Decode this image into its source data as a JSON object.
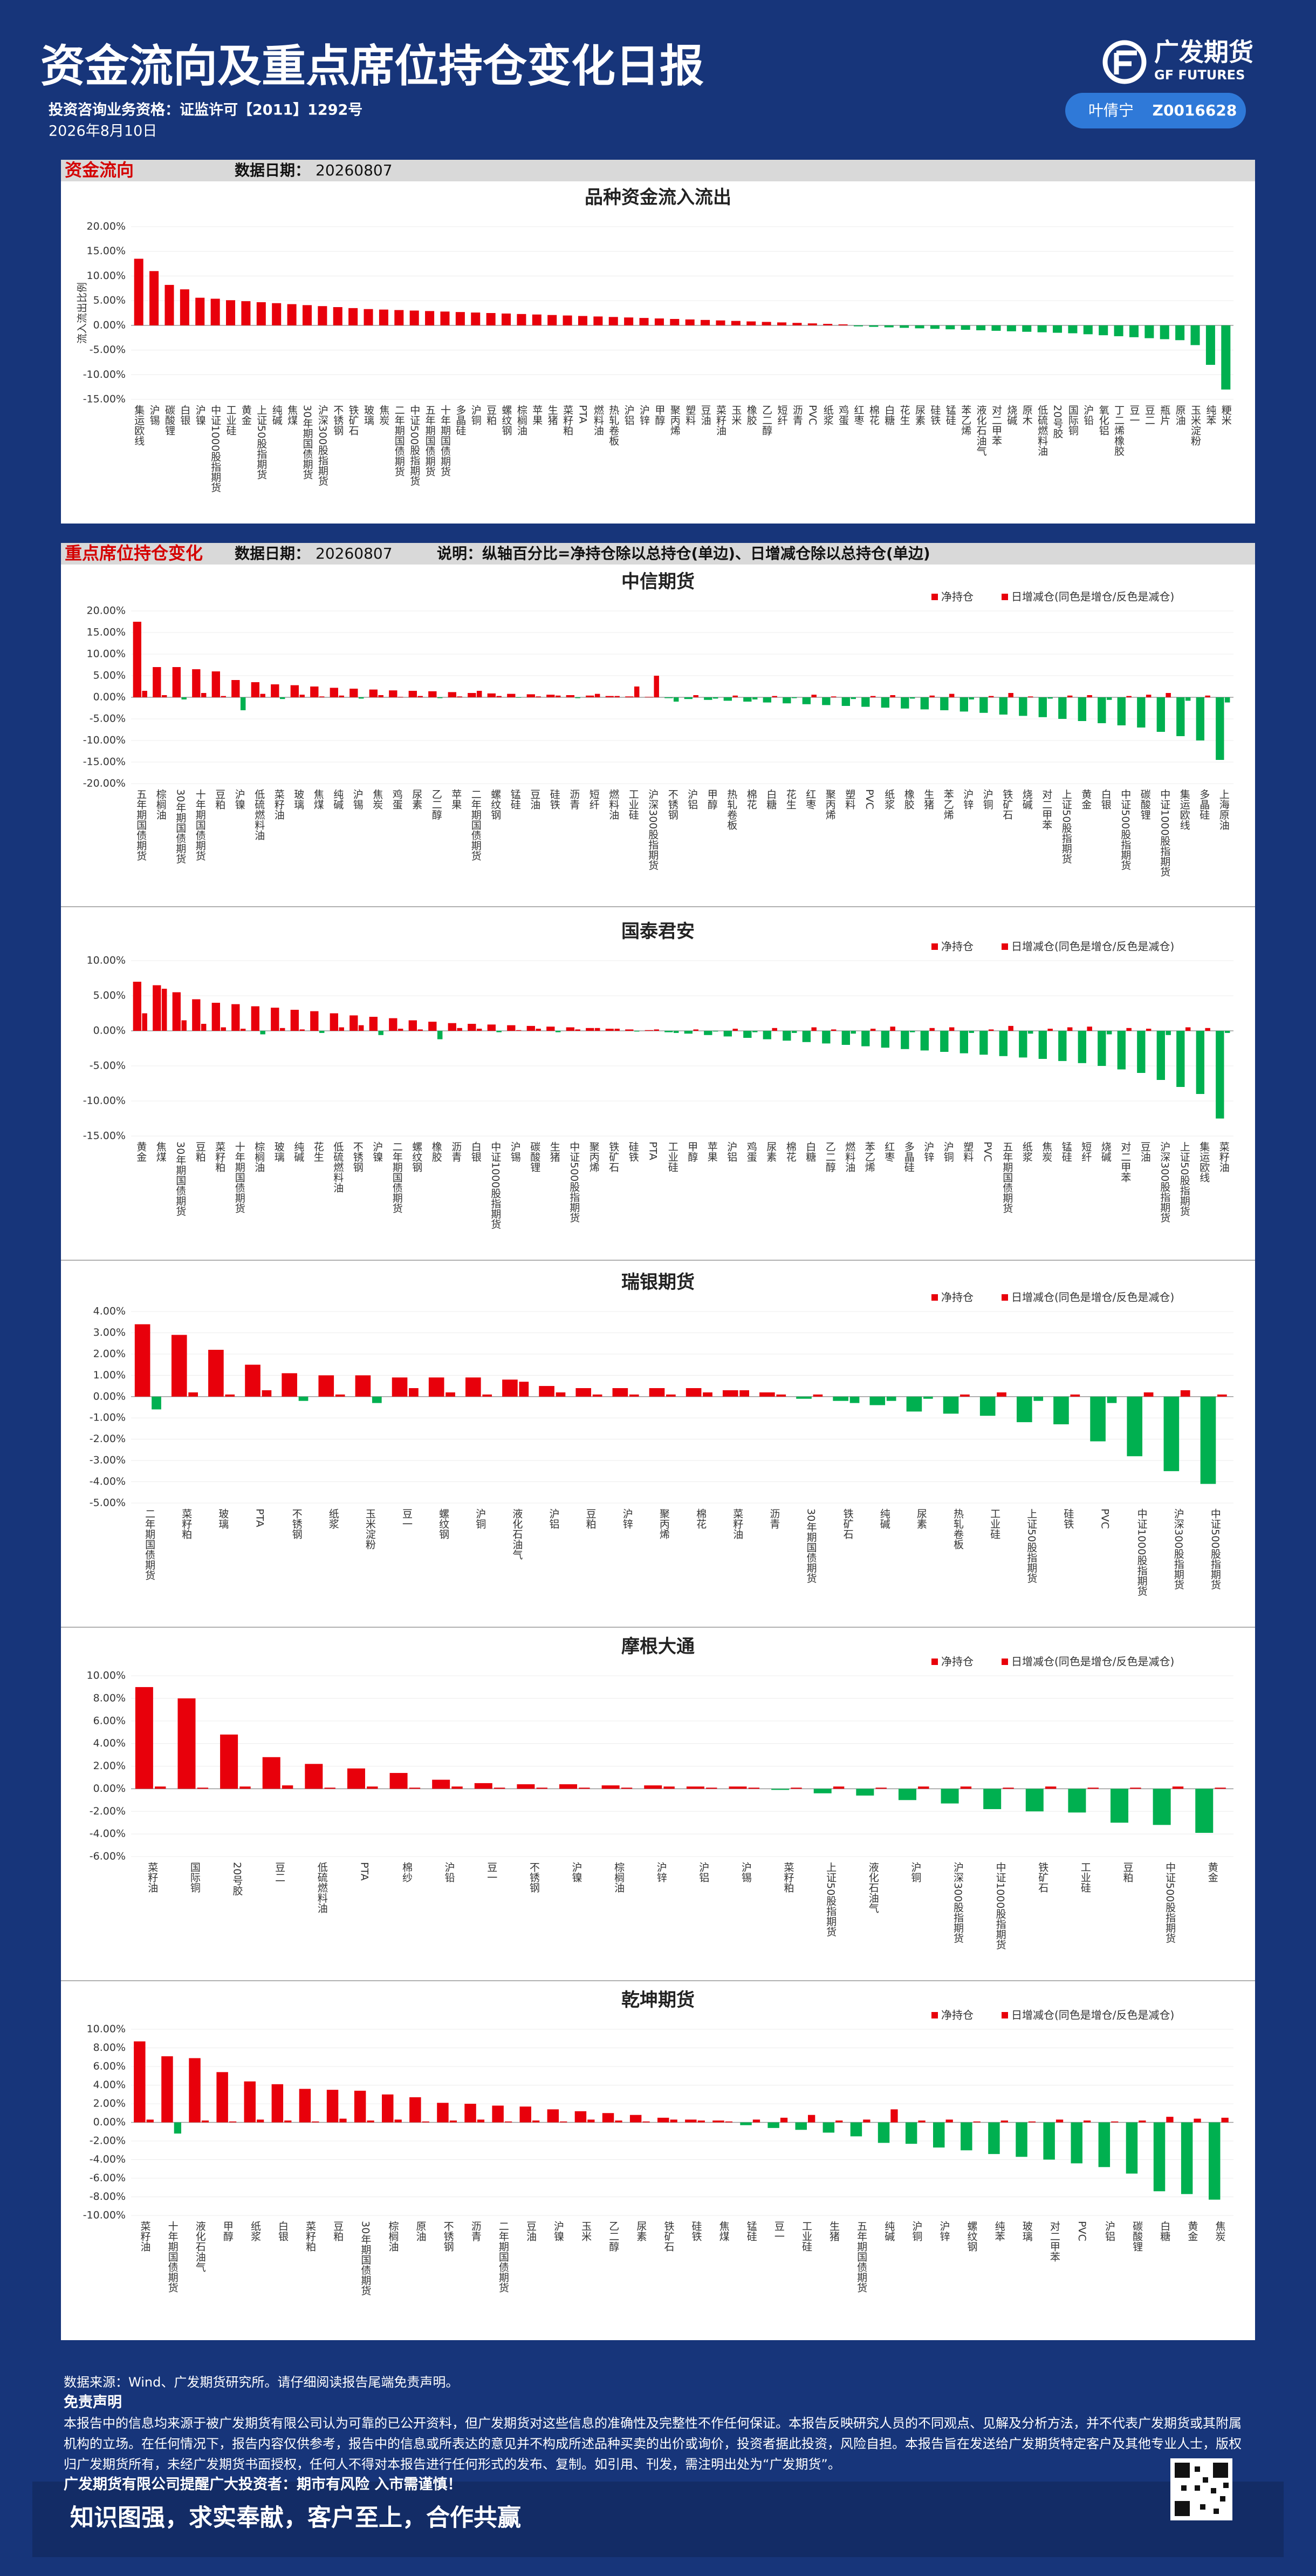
{
  "header": {
    "title": "资金流向及重点席位持仓变化日报",
    "license": "投资咨询业务资格：证监许可【2011】1292号",
    "date": "2026年8月10日",
    "brand": "广发期货",
    "brand_en": "GF FUTURES",
    "analyst": "叶倩宁",
    "analyst_id": "Z0016628"
  },
  "sections": [
    {
      "title": "资金流向",
      "date_label": "数据日期：",
      "date": "20260807"
    },
    {
      "title": "重点席位持仓变化",
      "date_label": "数据日期：",
      "date": "20260807",
      "note": "说明：纵轴百分比=净持仓除以总持仓(单边)、日增减仓除以总持仓(单边)"
    }
  ],
  "chart_data": [
    {
      "type": "bar",
      "title": "品种资金流入流出",
      "y_label": "流入流出比例",
      "grid": true,
      "positive_color": "#e8000b",
      "negative_color": "#00b050",
      "categories": [
        "集运欧线",
        "沪锡",
        "碳酸锂",
        "白银",
        "沪镍",
        "中证1000股指期货",
        "工业硅",
        "黄金",
        "上证50股指期货",
        "纯碱",
        "焦煤",
        "30年期国债期货",
        "沪深300股指期货",
        "不锈钢",
        "铁矿石",
        "玻璃",
        "焦炭",
        "二年期国债期货",
        "中证500股指期货",
        "五年期国债期货",
        "十年期国债期货",
        "多晶硅",
        "沪铜",
        "豆粕",
        "螺纹钢",
        "棕榈油",
        "苹果",
        "生猪",
        "菜籽粕",
        "PTA",
        "燃料油",
        "热轧卷板",
        "沪铝",
        "沪锌",
        "甲醇",
        "聚丙烯",
        "塑料",
        "豆油",
        "菜籽油",
        "玉米",
        "橡胶",
        "乙二醇",
        "短纤",
        "沥青",
        "PVC",
        "纸浆",
        "鸡蛋",
        "红枣",
        "棉花",
        "白糖",
        "花生",
        "尿素",
        "硅铁",
        "锰硅",
        "苯乙烯",
        "液化石油气",
        "对二甲苯",
        "烧碱",
        "原木",
        "低硫燃料油",
        "20号胶",
        "国际铜",
        "沪铅",
        "氧化铝",
        "丁二烯橡胶",
        "豆一",
        "豆二",
        "瓶片",
        "原油",
        "玉米淀粉",
        "纯苯",
        "粳米"
      ],
      "values": [
        13.5,
        11.0,
        8.2,
        7.3,
        5.6,
        5.4,
        5.1,
        4.9,
        4.7,
        4.5,
        4.3,
        4.1,
        3.9,
        3.7,
        3.5,
        3.3,
        3.2,
        3.1,
        3.0,
        2.9,
        2.8,
        2.7,
        2.6,
        2.5,
        2.4,
        2.3,
        2.2,
        2.1,
        2.0,
        1.9,
        1.8,
        1.7,
        1.6,
        1.5,
        1.4,
        1.3,
        1.2,
        1.1,
        1.0,
        0.9,
        0.8,
        0.7,
        0.6,
        0.5,
        0.4,
        0.3,
        0.2,
        -0.2,
        -0.3,
        -0.4,
        -0.5,
        -0.6,
        -0.7,
        -0.8,
        -0.9,
        -1.0,
        -1.1,
        -1.2,
        -1.3,
        -1.4,
        -1.5,
        -1.6,
        -1.8,
        -2.0,
        -2.2,
        -2.4,
        -2.6,
        -2.8,
        -3.0,
        -4.0,
        -8.0,
        -13.0
      ],
      "ylim": [
        -15,
        20
      ],
      "yticks": [
        {
          "value": -15,
          "label": "-15.00%"
        },
        {
          "value": -10,
          "label": "-10.00%"
        },
        {
          "value": -5,
          "label": "-5.00%"
        },
        {
          "value": 0,
          "label": "0.00%"
        },
        {
          "value": 5,
          "label": "5.00%"
        },
        {
          "value": 10,
          "label": "10.00%"
        },
        {
          "value": 15,
          "label": "15.00%"
        },
        {
          "value": 20,
          "label": "20.00%"
        }
      ]
    },
    {
      "type": "bar",
      "title": "中信期货",
      "grid": true,
      "positive_color": "#e8000b",
      "negative_color": "#00b050",
      "categories": [
        "五年期国债期货",
        "棕榈油",
        "30年期国债期货",
        "十年期国债期货",
        "豆粕",
        "沪镍",
        "低硫燃料油",
        "菜籽油",
        "玻璃",
        "焦煤",
        "纯碱",
        "沪锡",
        "焦炭",
        "鸡蛋",
        "尿素",
        "乙二醇",
        "苹果",
        "二年期国债期货",
        "螺纹钢",
        "锰硅",
        "豆油",
        "硅铁",
        "沥青",
        "短纤",
        "燃料油",
        "工业硅",
        "沪深300股指期货",
        "不锈钢",
        "沪铝",
        "甲醇",
        "热轧卷板",
        "棉花",
        "白糖",
        "花生",
        "红枣",
        "聚丙烯",
        "塑料",
        "PVC",
        "纸浆",
        "橡胶",
        "生猪",
        "苯乙烯",
        "沪锌",
        "沪铜",
        "铁矿石",
        "烧碱",
        "对二甲苯",
        "上证50股指期货",
        "黄金",
        "白银",
        "中证500股指期货",
        "碳酸锂",
        "中证1000股指期货",
        "集运欧线",
        "多晶硅",
        "上海原油"
      ],
      "series": [
        {
          "name": "净持仓",
          "color": "#e8000b",
          "values": [
            17.5,
            7,
            7,
            6.5,
            6,
            4,
            3.5,
            3,
            2.8,
            2.5,
            2.2,
            2,
            1.8,
            1.6,
            1.5,
            1.4,
            1.2,
            1,
            0.9,
            0.8,
            0.7,
            0.6,
            0.5,
            0.4,
            0.3,
            0.2,
            0.1,
            -0.2,
            -0.4,
            -0.6,
            -0.8,
            -1,
            -1.2,
            -1.4,
            -1.6,
            -1.8,
            -2,
            -2.2,
            -2.4,
            -2.6,
            -2.8,
            -3,
            -3.3,
            -3.6,
            -4,
            -4.3,
            -4.6,
            -5,
            -5.5,
            -6,
            -6.5,
            -7,
            -8,
            -9,
            -10,
            -14.5
          ]
        },
        {
          "name": "日增减仓(同色是增仓/反色是减仓)",
          "color": "#e8000b",
          "values": [
            1.5,
            0.5,
            -0.5,
            1.0,
            0.3,
            -3.0,
            0.8,
            -0.4,
            0.6,
            0.2,
            0.4,
            -0.3,
            0.5,
            0.1,
            0.3,
            -0.2,
            0.2,
            1.5,
            0.3,
            -0.1,
            0.2,
            0.4,
            -0.2,
            0.8,
            0.3,
            2.5,
            5.0,
            -1.0,
            0.5,
            -0.3,
            0.4,
            -0.5,
            0.3,
            -0.2,
            0.6,
            0.2,
            -0.4,
            0.3,
            0.5,
            -0.3,
            0.4,
            0.8,
            -0.5,
            0.3,
            1.0,
            0.2,
            -0.3,
            0.4,
            0.5,
            -0.6,
            0.3,
            0.6,
            1.0,
            -0.8,
            0.4,
            -1.2
          ]
        }
      ],
      "ylim": [
        -20,
        20
      ],
      "yticks": [
        {
          "value": -20,
          "label": "-20.00%"
        },
        {
          "value": -15,
          "label": "-15.00%"
        },
        {
          "value": -10,
          "label": "-10.00%"
        },
        {
          "value": -5,
          "label": "-5.00%"
        },
        {
          "value": 0,
          "label": "0.00%"
        },
        {
          "value": 5,
          "label": "5.00%"
        },
        {
          "value": 10,
          "label": "10.00%"
        },
        {
          "value": 15,
          "label": "15.00%"
        },
        {
          "value": 20,
          "label": "20.00%"
        }
      ]
    },
    {
      "type": "bar",
      "title": "国泰君安",
      "grid": true,
      "positive_color": "#e8000b",
      "negative_color": "#00b050",
      "categories": [
        "黄金",
        "焦煤",
        "30年期国债期货",
        "豆粕",
        "菜籽粕",
        "十年期国债期货",
        "棕榈油",
        "玻璃",
        "纯碱",
        "花生",
        "低硫燃料油",
        "不锈钢",
        "沪镍",
        "二年期国债期货",
        "螺纹钢",
        "橡胶",
        "沥青",
        "白银",
        "中证1000股指期货",
        "沪锡",
        "碳酸锂",
        "生猪",
        "中证500股指期货",
        "聚丙烯",
        "铁矿石",
        "硅铁",
        "PTA",
        "工业硅",
        "甲醇",
        "苹果",
        "沪铝",
        "鸡蛋",
        "尿素",
        "棉花",
        "白糖",
        "乙二醇",
        "燃料油",
        "苯乙烯",
        "红枣",
        "多晶硅",
        "沪锌",
        "沪铜",
        "塑料",
        "PVC",
        "五年期国债期货",
        "纸浆",
        "焦炭",
        "锰硅",
        "短纤",
        "烧碱",
        "对二甲苯",
        "豆油",
        "沪深300股指期货",
        "上证50股指期货",
        "集运欧线",
        "菜籽油"
      ],
      "series": [
        {
          "name": "净持仓",
          "color": "#e8000b",
          "values": [
            7,
            6.5,
            5.5,
            4.5,
            4,
            3.8,
            3.5,
            3.3,
            3,
            2.8,
            2.5,
            2.2,
            2,
            1.8,
            1.5,
            1.3,
            1.1,
            1,
            0.9,
            0.8,
            0.7,
            0.6,
            0.5,
            0.4,
            0.3,
            0.2,
            0.1,
            -0.2,
            -0.4,
            -0.6,
            -0.8,
            -1,
            -1.2,
            -1.4,
            -1.6,
            -1.8,
            -2,
            -2.2,
            -2.4,
            -2.6,
            -2.8,
            -3,
            -3.2,
            -3.4,
            -3.6,
            -3.8,
            -4,
            -4.3,
            -4.6,
            -5,
            -5.5,
            -6,
            -7,
            -8,
            -9,
            -12.5
          ]
        },
        {
          "name": "日增减仓(同色是增仓/反色是减仓)",
          "color": "#e8000b",
          "values": [
            2.5,
            6,
            1.5,
            1,
            0.5,
            0.3,
            -0.5,
            0.4,
            0.2,
            -0.3,
            0.5,
            0.8,
            -0.6,
            0.3,
            0.2,
            -1.2,
            0.4,
            0.3,
            -0.2,
            0.1,
            0.3,
            -0.2,
            0.2,
            0.4,
            0.3,
            -0.1,
            0.2,
            -0.3,
            0.2,
            -0.1,
            0.3,
            -0.2,
            0.4,
            -0.3,
            0.5,
            0.2,
            -0.4,
            0.3,
            0.6,
            -0.2,
            0.4,
            0.5,
            -0.3,
            0.2,
            0.7,
            -0.4,
            0.3,
            0.5,
            0.6,
            -0.5,
            0.4,
            0.3,
            -0.6,
            0.5,
            0.4,
            -0.3
          ]
        }
      ],
      "ylim": [
        -15,
        10
      ],
      "yticks": [
        {
          "value": -15,
          "label": "-15.00%"
        },
        {
          "value": -10,
          "label": "-10.00%"
        },
        {
          "value": -5,
          "label": "-5.00%"
        },
        {
          "value": 0,
          "label": "0.00%"
        },
        {
          "value": 5,
          "label": "5.00%"
        },
        {
          "value": 10,
          "label": "10.00%"
        }
      ]
    },
    {
      "type": "bar",
      "title": "瑞银期货",
      "grid": true,
      "positive_color": "#e8000b",
      "negative_color": "#00b050",
      "categories": [
        "二年期国债期货",
        "菜籽粕",
        "玻璃",
        "PTA",
        "不锈钢",
        "纸浆",
        "玉米淀粉",
        "豆一",
        "螺纹钢",
        "沪铜",
        "液化石油气",
        "沪铝",
        "豆粕",
        "沪锌",
        "聚丙烯",
        "棉花",
        "菜籽油",
        "沥青",
        "30年期国债期货",
        "铁矿石",
        "纯碱",
        "尿素",
        "热轧卷板",
        "工业硅",
        "上证50股指期货",
        "硅铁",
        "PVC",
        "中证1000股指期货",
        "沪深300股指期货",
        "中证500股指期货"
      ],
      "series": [
        {
          "name": "净持仓",
          "color": "#e8000b",
          "values": [
            3.4,
            2.9,
            2.2,
            1.5,
            1.1,
            1.0,
            1.0,
            0.9,
            0.9,
            0.9,
            0.8,
            0.5,
            0.4,
            0.4,
            0.4,
            0.4,
            0.3,
            0.2,
            -0.1,
            -0.2,
            -0.4,
            -0.7,
            -0.8,
            -0.9,
            -1.2,
            -1.3,
            -2.1,
            -2.8,
            -3.5,
            -4.1
          ]
        },
        {
          "name": "日增减仓(同色是增仓/反色是减仓)",
          "color": "#e8000b",
          "values": [
            -0.6,
            0.2,
            0.1,
            0.3,
            -0.2,
            0.1,
            -0.3,
            0.4,
            0.2,
            0.1,
            0.7,
            0.2,
            0.1,
            0.1,
            0.1,
            0.2,
            0.3,
            0.1,
            0.1,
            -0.3,
            -0.2,
            -0.1,
            0.1,
            0.2,
            -0.2,
            0.1,
            -0.3,
            0.2,
            0.3,
            0.1
          ]
        }
      ],
      "ylim": [
        -5,
        4
      ],
      "yticks": [
        {
          "value": -5,
          "label": "-5.00%"
        },
        {
          "value": -4,
          "label": "-4.00%"
        },
        {
          "value": -3,
          "label": "-3.00%"
        },
        {
          "value": -2,
          "label": "-2.00%"
        },
        {
          "value": -1,
          "label": "-1.00%"
        },
        {
          "value": 0,
          "label": "0.00%"
        },
        {
          "value": 1,
          "label": "1.00%"
        },
        {
          "value": 2,
          "label": "2.00%"
        },
        {
          "value": 3,
          "label": "3.00%"
        },
        {
          "value": 4,
          "label": "4.00%"
        }
      ]
    },
    {
      "type": "bar",
      "title": "摩根大通",
      "grid": true,
      "positive_color": "#e8000b",
      "negative_color": "#00b050",
      "categories": [
        "菜籽油",
        "国际铜",
        "20号胶",
        "豆二",
        "低硫燃料油",
        "PTA",
        "棉纱",
        "沪铅",
        "豆一",
        "不锈钢",
        "沪镍",
        "棕榈油",
        "沪锌",
        "沪铝",
        "沪锡",
        "菜籽粕",
        "上证50股指期货",
        "液化石油气",
        "沪铜",
        "沪深300股指期货",
        "中证1000股指期货",
        "铁矿石",
        "工业硅",
        "豆粕",
        "中证500股指期货",
        "黄金"
      ],
      "series": [
        {
          "name": "净持仓",
          "color": "#e8000b",
          "values": [
            9.0,
            8.0,
            4.8,
            2.8,
            2.2,
            1.8,
            1.4,
            0.8,
            0.5,
            0.4,
            0.4,
            0.3,
            0.3,
            0.2,
            0.2,
            -0.1,
            -0.4,
            -0.6,
            -1.0,
            -1.3,
            -1.8,
            -2.0,
            -2.1,
            -3.0,
            -3.2,
            -3.9
          ]
        },
        {
          "name": "日增减仓(同色是增仓/反色是减仓)",
          "color": "#e8000b",
          "values": [
            0.2,
            0.1,
            0.2,
            0.3,
            0.1,
            0.2,
            0.1,
            0.2,
            0.1,
            0.1,
            0.1,
            0.1,
            0.2,
            0.1,
            0.1,
            0.1,
            0.2,
            0.1,
            0.2,
            0.2,
            0.1,
            0.2,
            0.1,
            0.1,
            0.2,
            0.1
          ]
        }
      ],
      "ylim": [
        -6,
        10
      ],
      "yticks": [
        {
          "value": -6,
          "label": "-6.00%"
        },
        {
          "value": -4,
          "label": "-4.00%"
        },
        {
          "value": -2,
          "label": "-2.00%"
        },
        {
          "value": 0,
          "label": "0.00%"
        },
        {
          "value": 2,
          "label": "2.00%"
        },
        {
          "value": 4,
          "label": "4.00%"
        },
        {
          "value": 6,
          "label": "6.00%"
        },
        {
          "value": 8,
          "label": "8.00%"
        },
        {
          "value": 10,
          "label": "10.00%"
        }
      ]
    },
    {
      "type": "bar",
      "title": "乾坤期货",
      "grid": true,
      "positive_color": "#e8000b",
      "negative_color": "#00b050",
      "categories": [
        "菜籽油",
        "十年期国债期货",
        "液化石油气",
        "甲醇",
        "纸浆",
        "白银",
        "菜籽粕",
        "豆粕",
        "30年期国债期货",
        "棕榈油",
        "原油",
        "不锈钢",
        "沥青",
        "二年期国债期货",
        "豆油",
        "沪镍",
        "玉米",
        "乙二醇",
        "尿素",
        "铁矿石",
        "硅铁",
        "焦煤",
        "锰硅",
        "豆一",
        "工业硅",
        "生猪",
        "五年期国债期货",
        "纯碱",
        "沪铜",
        "沪锌",
        "螺纹钢",
        "纯苯",
        "玻璃",
        "对二甲苯",
        "PVC",
        "沪铝",
        "碳酸锂",
        "白糖",
        "黄金",
        "焦炭"
      ],
      "series": [
        {
          "name": "净持仓",
          "color": "#e8000b",
          "values": [
            8.7,
            7.1,
            6.9,
            5.4,
            4.4,
            4.1,
            3.6,
            3.5,
            3.4,
            3.0,
            2.7,
            2.1,
            2.0,
            1.8,
            1.7,
            1.4,
            1.2,
            1.0,
            0.8,
            0.5,
            0.3,
            0.2,
            -0.3,
            -0.6,
            -0.8,
            -1.1,
            -1.5,
            -2.2,
            -2.3,
            -2.7,
            -3.0,
            -3.4,
            -3.7,
            -4.0,
            -4.4,
            -4.8,
            -5.5,
            -7.4,
            -7.7,
            -8.3
          ]
        },
        {
          "name": "日增减仓(同色是增仓/反色是减仓)",
          "color": "#e8000b",
          "values": [
            0.3,
            -1.2,
            0.2,
            0.1,
            0.3,
            0.2,
            0.1,
            0.4,
            0.2,
            0.3,
            0.1,
            0.2,
            0.3,
            0.1,
            0.2,
            0.1,
            0.3,
            0.2,
            0.1,
            0.3,
            0.2,
            0.1,
            0.3,
            0.5,
            0.8,
            0.2,
            0.3,
            1.4,
            0.2,
            0.3,
            0.1,
            0.2,
            0.1,
            0.3,
            0.2,
            0.1,
            0.2,
            0.6,
            0.4,
            0.5
          ]
        }
      ],
      "ylim": [
        -10,
        10
      ],
      "yticks": [
        {
          "value": -10,
          "label": "-10.00%"
        },
        {
          "value": -8,
          "label": "-8.00%"
        },
        {
          "value": -6,
          "label": "-6.00%"
        },
        {
          "value": -4,
          "label": "-4.00%"
        },
        {
          "value": -2,
          "label": "-2.00%"
        },
        {
          "value": 0,
          "label": "0.00%"
        },
        {
          "value": 2,
          "label": "2.00%"
        },
        {
          "value": 4,
          "label": "4.00%"
        },
        {
          "value": 6,
          "label": "6.00%"
        },
        {
          "value": 8,
          "label": "8.00%"
        },
        {
          "value": 10,
          "label": "10.00%"
        }
      ]
    }
  ],
  "footer": {
    "source": "数据来源：Wind、广发期货研究所。请仔细阅读报告尾端免责声明。",
    "disclaimer_title": "免责声明",
    "disclaimer": "本报告中的信息均来源于被广发期货有限公司认为可靠的已公开资料，但广发期货对这些信息的准确性及完整性不作任何保证。本报告反映研究人员的不同观点、见解及分析方法，并不代表广发期货或其附属机构的立场。在任何情况下，报告内容仅供参考，报告中的信息或所表达的意见并不构成所述品种买卖的出价或询价，投资者据此投资，风险自担。本报告旨在发送给广发期货特定客户及其他专业人士，版权归广发期货所有，未经广发期货书面授权，任何人不得对本报告进行任何形式的发布、复制。如引用、刊发，需注明出处为“广发期货”。",
    "warning": "广发期货有限公司提醒广大投资者：期市有风险 入市需谨慎！",
    "slogan": "知识图强，求实奉献，客户至上，合作共赢"
  }
}
